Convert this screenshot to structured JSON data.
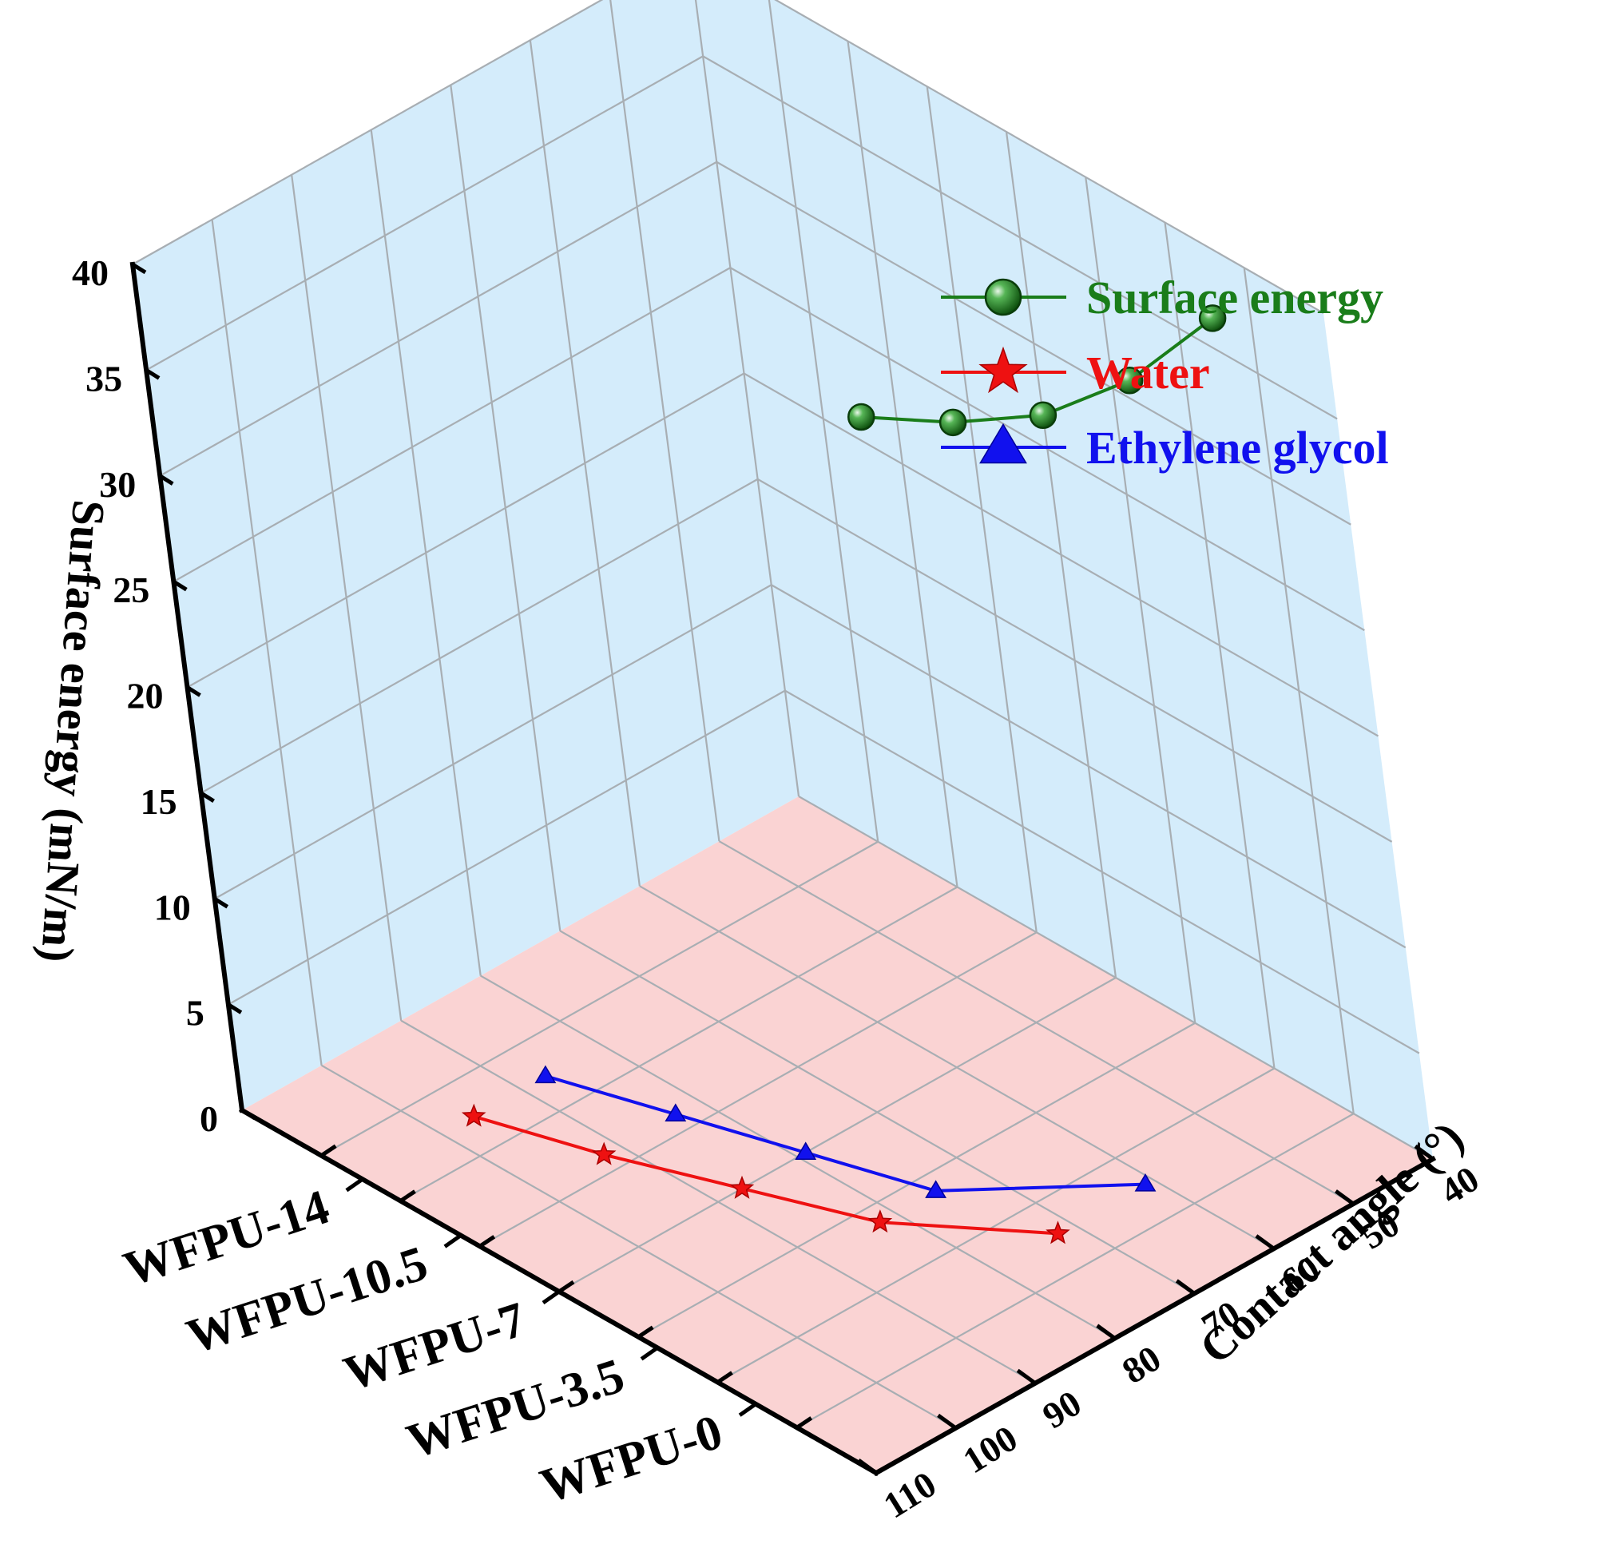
{
  "chart_data": {
    "type": "3d-line",
    "title": "",
    "categories": [
      "WFPU-0",
      "WFPU-3.5",
      "WFPU-7",
      "WFPU-10.5",
      "WFPU-14"
    ],
    "z_axis": {
      "label": "Surface energy (mN/m)",
      "range": [
        0,
        40
      ],
      "ticks": [
        "0",
        "5",
        "10",
        "15",
        "20",
        "25",
        "30",
        "35",
        "40"
      ]
    },
    "y_axis": {
      "label": "Contact angle (°)",
      "range": [
        40,
        110
      ],
      "ticks": [
        "40",
        "50",
        "60",
        "70",
        "80",
        "90",
        "100",
        "110"
      ]
    },
    "x_axis": {
      "label": "",
      "ticks": [
        "WFPU-0",
        "WFPU-3.5",
        "WFPU-7",
        "WFPU-10.5",
        "WFPU-14"
      ]
    },
    "series": [
      {
        "name": "Surface energy",
        "plane": "back wall",
        "color": "#1a7d1a",
        "marker": "sphere",
        "values": [
          36.5,
          30.9,
          26.6,
          23.6,
          21.2
        ]
      },
      {
        "name": "Water",
        "plane": "floor",
        "color": "#ee1111",
        "marker": "star",
        "values": [
          72,
          82,
          87,
          92,
          96
        ]
      },
      {
        "name": "Ethylene glycol",
        "plane": "floor",
        "color": "#1111ee",
        "marker": "triangle",
        "values": [
          61,
          75,
          79,
          83,
          87
        ]
      }
    ],
    "legend": {
      "position": "top-right",
      "entries": [
        "Surface energy",
        "Water",
        "Ethylene glycol"
      ]
    },
    "colors": {
      "wall": "#d4ecfb",
      "floor": "#fad3d3",
      "grid": "#a8aeb3",
      "axis": "#000000"
    }
  }
}
